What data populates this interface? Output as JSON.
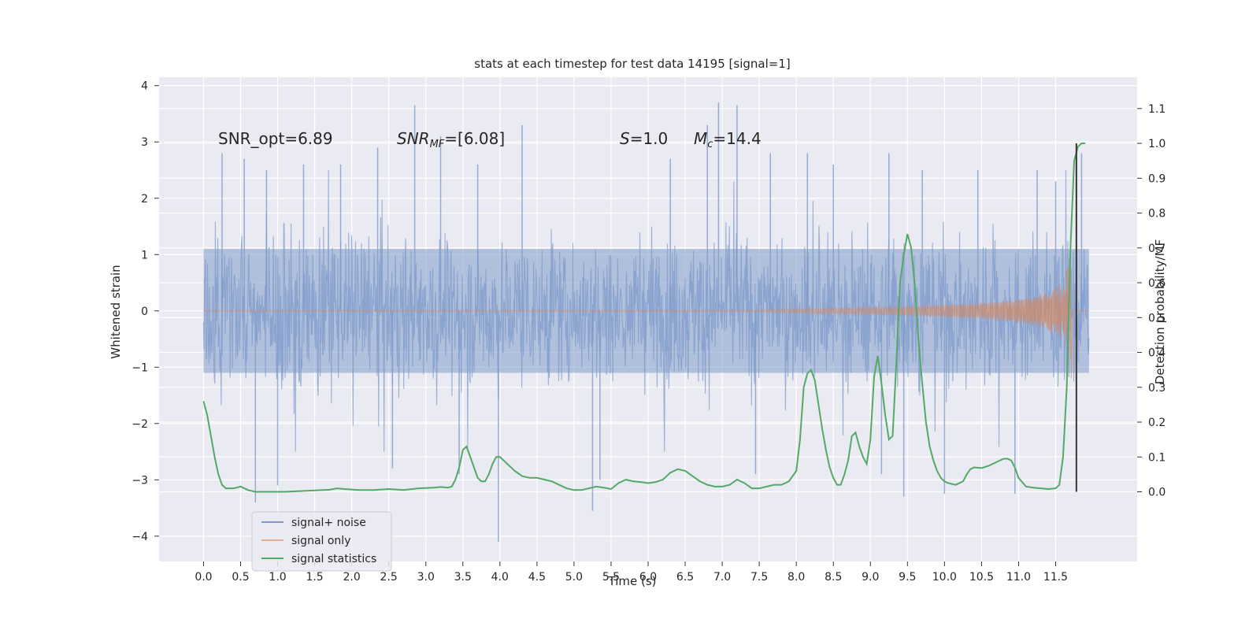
{
  "chart_data": {
    "type": "line",
    "title": "stats at each timestep for test data 14195 [signal=1]",
    "xlabel": "Time (s)",
    "ylabel_left": "Whitened strain",
    "ylabel_right": "Detection probability/MF",
    "xlim": [
      -0.6,
      12.6
    ],
    "ylim_left": [
      -4.45,
      4.15
    ],
    "ylim_right": [
      -0.2,
      1.19
    ],
    "xticks": [
      "0.0",
      "0.5",
      "1.0",
      "1.5",
      "2.0",
      "2.5",
      "3.0",
      "3.5",
      "4.0",
      "4.5",
      "5.0",
      "5.5",
      "6.0",
      "6.5",
      "7.0",
      "7.5",
      "8.0",
      "8.5",
      "9.0",
      "9.5",
      "10.0",
      "10.5",
      "11.0",
      "11.5"
    ],
    "yticks_left": [
      "4",
      "3",
      "2",
      "1",
      "0",
      "−1",
      "−2",
      "−3",
      "−4"
    ],
    "yticks_right": [
      "1.1",
      "1.0",
      "0.9",
      "0.8",
      "0.7",
      "0.6",
      "0.5",
      "0.4",
      "0.3",
      "0.2",
      "0.1",
      "0.0"
    ],
    "grid": true,
    "legend_position": "lower-left",
    "colors": {
      "noise": "#7f9bca",
      "signal": "#dd8452",
      "stat": "#55a868",
      "marker": "#333333",
      "background": "#eaeaf2",
      "grid": "#ffffff"
    },
    "annotations": {
      "snr_opt": "SNR_opt=6.89",
      "snr_mf_base": "SNR",
      "snr_mf_sub": "MF",
      "snr_mf_value": "=[6.08]",
      "s_var": "S",
      "s_value": "=1.0",
      "mc_var": "M",
      "mc_sub": "c",
      "mc_value": "=14.4"
    },
    "series": [
      {
        "name": "signal+ noise",
        "description_values": {
          "t_start": 0.0,
          "t_end": 11.95,
          "core_amplitude": 1.0,
          "extreme_min": -4.1,
          "extreme_max": 3.7
        },
        "spikes": [
          [
            0.25,
            2.8
          ],
          [
            0.55,
            2.7
          ],
          [
            0.7,
            -3.4
          ],
          [
            0.85,
            2.5
          ],
          [
            1.0,
            -3.1
          ],
          [
            1.35,
            2.6
          ],
          [
            1.85,
            2.6
          ],
          [
            2.35,
            2.9
          ],
          [
            2.55,
            -2.8
          ],
          [
            2.85,
            3.65
          ],
          [
            3.2,
            3.1
          ],
          [
            3.45,
            -2.9
          ],
          [
            3.7,
            2.6
          ],
          [
            3.98,
            -4.1
          ],
          [
            4.3,
            3.3
          ],
          [
            5.25,
            -3.55
          ],
          [
            5.35,
            -3.0
          ],
          [
            6.3,
            2.7
          ],
          [
            6.8,
            3.3
          ],
          [
            6.95,
            3.7
          ],
          [
            7.2,
            3.65
          ],
          [
            7.45,
            -2.9
          ],
          [
            7.65,
            2.8
          ],
          [
            8.15,
            2.8
          ],
          [
            8.5,
            2.6
          ],
          [
            9.15,
            -2.9
          ],
          [
            9.25,
            2.8
          ],
          [
            9.45,
            -3.3
          ],
          [
            9.7,
            2.5
          ],
          [
            10.0,
            -3.25
          ],
          [
            10.45,
            2.5
          ],
          [
            10.95,
            -3.25
          ],
          [
            11.25,
            2.5
          ],
          [
            11.5,
            2.3
          ],
          [
            11.85,
            2.8
          ]
        ]
      },
      {
        "name": "signal only",
        "description_values": {
          "t_start": 0.0,
          "t_end": 11.95,
          "peak_time": 11.7,
          "peak_max": 0.95,
          "peak_min": -1.2
        },
        "envelope": [
          [
            7.5,
            0.02
          ],
          [
            8.5,
            0.05
          ],
          [
            9.5,
            0.08
          ],
          [
            10.5,
            0.14
          ],
          [
            11.0,
            0.2
          ],
          [
            11.3,
            0.28
          ],
          [
            11.5,
            0.4
          ],
          [
            11.6,
            0.55
          ],
          [
            11.7,
            0.95
          ]
        ]
      },
      {
        "name": "signal statistics",
        "axis": "right",
        "points": [
          [
            0.0,
            0.26
          ],
          [
            0.05,
            0.22
          ],
          [
            0.1,
            0.16
          ],
          [
            0.15,
            0.1
          ],
          [
            0.2,
            0.05
          ],
          [
            0.25,
            0.02
          ],
          [
            0.3,
            0.01
          ],
          [
            0.35,
            0.01
          ],
          [
            0.4,
            0.01
          ],
          [
            0.45,
            0.012
          ],
          [
            0.5,
            0.015
          ],
          [
            0.55,
            0.01
          ],
          [
            0.6,
            0.005
          ],
          [
            0.7,
            0.0
          ],
          [
            0.9,
            0.0
          ],
          [
            1.1,
            0.0
          ],
          [
            1.3,
            0.002
          ],
          [
            1.5,
            0.004
          ],
          [
            1.7,
            0.006
          ],
          [
            1.8,
            0.01
          ],
          [
            1.9,
            0.008
          ],
          [
            2.1,
            0.005
          ],
          [
            2.3,
            0.005
          ],
          [
            2.5,
            0.008
          ],
          [
            2.7,
            0.005
          ],
          [
            2.9,
            0.01
          ],
          [
            3.1,
            0.012
          ],
          [
            3.2,
            0.014
          ],
          [
            3.3,
            0.012
          ],
          [
            3.35,
            0.015
          ],
          [
            3.4,
            0.035
          ],
          [
            3.45,
            0.07
          ],
          [
            3.5,
            0.12
          ],
          [
            3.55,
            0.13
          ],
          [
            3.6,
            0.1
          ],
          [
            3.65,
            0.07
          ],
          [
            3.7,
            0.04
          ],
          [
            3.75,
            0.03
          ],
          [
            3.8,
            0.03
          ],
          [
            3.85,
            0.05
          ],
          [
            3.9,
            0.08
          ],
          [
            3.95,
            0.1
          ],
          [
            4.0,
            0.1
          ],
          [
            4.05,
            0.09
          ],
          [
            4.1,
            0.08
          ],
          [
            4.2,
            0.06
          ],
          [
            4.3,
            0.045
          ],
          [
            4.4,
            0.04
          ],
          [
            4.5,
            0.04
          ],
          [
            4.6,
            0.035
          ],
          [
            4.7,
            0.03
          ],
          [
            4.8,
            0.02
          ],
          [
            4.9,
            0.01
          ],
          [
            5.0,
            0.005
          ],
          [
            5.1,
            0.005
          ],
          [
            5.2,
            0.01
          ],
          [
            5.3,
            0.015
          ],
          [
            5.4,
            0.012
          ],
          [
            5.5,
            0.008
          ],
          [
            5.6,
            0.025
          ],
          [
            5.7,
            0.035
          ],
          [
            5.8,
            0.03
          ],
          [
            5.9,
            0.028
          ],
          [
            6.0,
            0.025
          ],
          [
            6.1,
            0.028
          ],
          [
            6.2,
            0.035
          ],
          [
            6.3,
            0.055
          ],
          [
            6.4,
            0.065
          ],
          [
            6.5,
            0.06
          ],
          [
            6.6,
            0.045
          ],
          [
            6.7,
            0.03
          ],
          [
            6.8,
            0.02
          ],
          [
            6.9,
            0.015
          ],
          [
            7.0,
            0.015
          ],
          [
            7.1,
            0.02
          ],
          [
            7.2,
            0.035
          ],
          [
            7.3,
            0.025
          ],
          [
            7.4,
            0.01
          ],
          [
            7.5,
            0.01
          ],
          [
            7.6,
            0.015
          ],
          [
            7.7,
            0.02
          ],
          [
            7.8,
            0.02
          ],
          [
            7.9,
            0.03
          ],
          [
            8.0,
            0.06
          ],
          [
            8.05,
            0.15
          ],
          [
            8.1,
            0.3
          ],
          [
            8.15,
            0.34
          ],
          [
            8.2,
            0.35
          ],
          [
            8.25,
            0.32
          ],
          [
            8.3,
            0.25
          ],
          [
            8.35,
            0.18
          ],
          [
            8.4,
            0.12
          ],
          [
            8.45,
            0.07
          ],
          [
            8.5,
            0.04
          ],
          [
            8.55,
            0.02
          ],
          [
            8.6,
            0.02
          ],
          [
            8.65,
            0.05
          ],
          [
            8.7,
            0.09
          ],
          [
            8.75,
            0.16
          ],
          [
            8.8,
            0.17
          ],
          [
            8.85,
            0.13
          ],
          [
            8.9,
            0.1
          ],
          [
            8.95,
            0.08
          ],
          [
            9.0,
            0.15
          ],
          [
            9.05,
            0.33
          ],
          [
            9.1,
            0.39
          ],
          [
            9.15,
            0.31
          ],
          [
            9.2,
            0.22
          ],
          [
            9.25,
            0.15
          ],
          [
            9.3,
            0.16
          ],
          [
            9.35,
            0.37
          ],
          [
            9.4,
            0.6
          ],
          [
            9.45,
            0.68
          ],
          [
            9.5,
            0.74
          ],
          [
            9.55,
            0.7
          ],
          [
            9.6,
            0.59
          ],
          [
            9.65,
            0.43
          ],
          [
            9.7,
            0.31
          ],
          [
            9.75,
            0.2
          ],
          [
            9.8,
            0.13
          ],
          [
            9.85,
            0.09
          ],
          [
            9.9,
            0.06
          ],
          [
            9.95,
            0.04
          ],
          [
            10.0,
            0.03
          ],
          [
            10.05,
            0.025
          ],
          [
            10.15,
            0.02
          ],
          [
            10.25,
            0.03
          ],
          [
            10.3,
            0.05
          ],
          [
            10.35,
            0.065
          ],
          [
            10.4,
            0.07
          ],
          [
            10.5,
            0.068
          ],
          [
            10.6,
            0.075
          ],
          [
            10.7,
            0.085
          ],
          [
            10.8,
            0.095
          ],
          [
            10.85,
            0.095
          ],
          [
            10.9,
            0.09
          ],
          [
            10.95,
            0.07
          ],
          [
            11.0,
            0.04
          ],
          [
            11.1,
            0.015
          ],
          [
            11.2,
            0.012
          ],
          [
            11.3,
            0.01
          ],
          [
            11.4,
            0.008
          ],
          [
            11.5,
            0.01
          ],
          [
            11.55,
            0.02
          ],
          [
            11.6,
            0.1
          ],
          [
            11.65,
            0.3
          ],
          [
            11.7,
            0.7
          ],
          [
            11.75,
            0.95
          ],
          [
            11.8,
            0.99
          ],
          [
            11.85,
            1.0
          ],
          [
            11.9,
            1.0
          ]
        ]
      }
    ],
    "vertical_marker": {
      "x": 11.78,
      "y_from": 0.0,
      "y_to": 1.0
    },
    "legend": [
      "signal+ noise",
      "signal only",
      "signal statistics"
    ]
  }
}
